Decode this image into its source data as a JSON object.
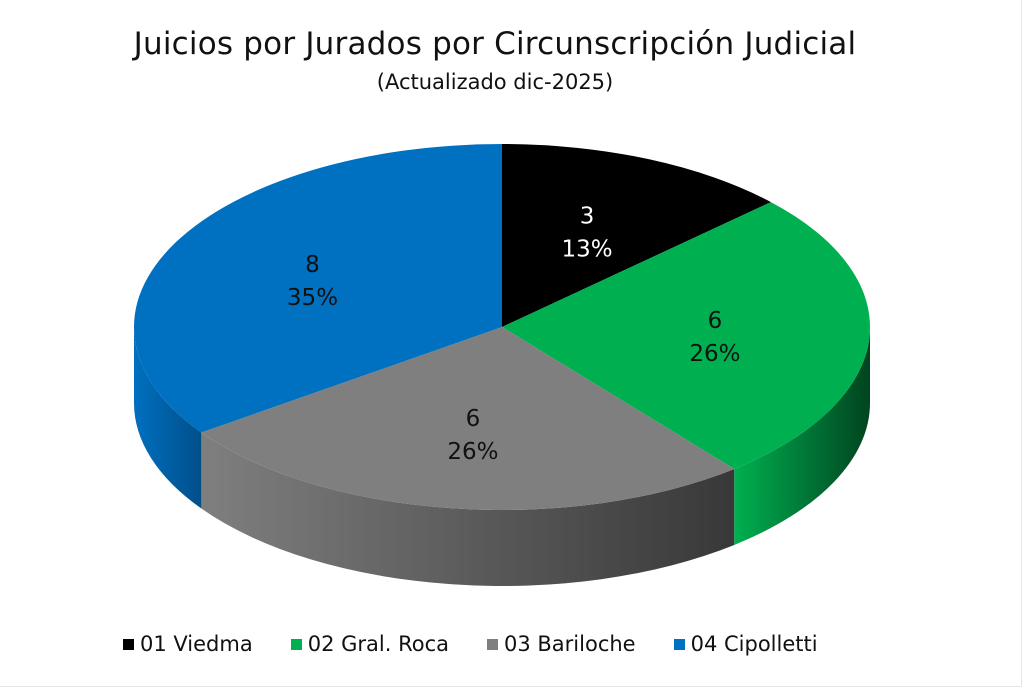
{
  "chart_data": {
    "type": "pie",
    "title": "Juicios por Jurados por Circunscripción Judicial",
    "subtitle": "(Actualizado dic-2025)",
    "legend_position": "bottom",
    "slices": [
      {
        "label": "01 Viedma",
        "value": 3,
        "percent": "13%",
        "color": "#000000",
        "side_color": "#1a1a1a",
        "text_color": "#ffffff"
      },
      {
        "label": "02 Gral. Roca",
        "value": 6,
        "percent": "26%",
        "color": "#00b050",
        "side_color": "#00441f",
        "text_color": "#111111"
      },
      {
        "label": "03 Bariloche",
        "value": 6,
        "percent": "26%",
        "color": "#7f7f7f",
        "side_color": "#383838",
        "text_color": "#111111"
      },
      {
        "label": "04 Cipolletti",
        "value": 8,
        "percent": "35%",
        "color": "#0070c0",
        "side_color": "#004f8a",
        "text_color": "#111111"
      }
    ]
  }
}
